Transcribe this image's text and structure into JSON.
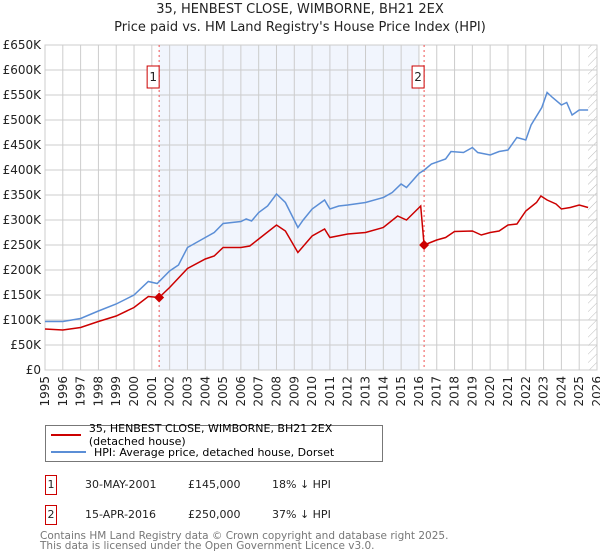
{
  "chart_data": {
    "type": "line",
    "title": "35, HENBEST CLOSE, WIMBORNE, BH21 2EX",
    "subtitle": "Price paid vs. HM Land Registry's House Price Index (HPI)",
    "xlim": [
      1995,
      2026
    ],
    "ylim": [
      0,
      650000
    ],
    "yticks": [
      0,
      50000,
      100000,
      150000,
      200000,
      250000,
      300000,
      350000,
      400000,
      450000,
      500000,
      550000,
      600000,
      650000
    ],
    "ytick_labels": [
      "£0",
      "£50K",
      "£100K",
      "£150K",
      "£200K",
      "£250K",
      "£300K",
      "£350K",
      "£400K",
      "£450K",
      "£500K",
      "£550K",
      "£600K",
      "£650K"
    ],
    "xtick_labels": [
      "1995",
      "1996",
      "1997",
      "1998",
      "1999",
      "2000",
      "2001",
      "2002",
      "2003",
      "2004",
      "2005",
      "2006",
      "2007",
      "2008",
      "2009",
      "2010",
      "2011",
      "2012",
      "2013",
      "2014",
      "2015",
      "2016",
      "2017",
      "2018",
      "2019",
      "2020",
      "2021",
      "2022",
      "2023",
      "2024",
      "2025",
      "2026"
    ],
    "grid": true,
    "series": [
      {
        "name": "35, HENBEST CLOSE, WIMBORNE, BH21 2EX (detached house)",
        "color": "#cc0000",
        "x": [
          1995,
          1996,
          1997,
          1998,
          1999,
          2000,
          2000.8,
          2001.41,
          2002,
          2003,
          2004,
          2004.5,
          2005,
          2006,
          2006.5,
          2007,
          2008,
          2008.5,
          2009.2,
          2010,
          2010.7,
          2011,
          2012,
          2013,
          2014,
          2014.8,
          2015.3,
          2016.1,
          2016.29,
          2017,
          2017.5,
          2018,
          2019,
          2019.5,
          2020,
          2020.5,
          2021,
          2021.5,
          2022,
          2022.6,
          2022.85,
          2023.2,
          2023.7,
          2024,
          2024.5,
          2025,
          2025.5
        ],
        "y": [
          82000,
          80000,
          85000,
          97000,
          108000,
          125000,
          147000,
          145000,
          165000,
          203000,
          222000,
          228000,
          245000,
          245000,
          248000,
          262000,
          290000,
          278000,
          235000,
          268000,
          282000,
          265000,
          272000,
          275000,
          285000,
          308000,
          300000,
          328000,
          250000,
          260000,
          265000,
          277000,
          278000,
          270000,
          275000,
          278000,
          290000,
          292000,
          318000,
          335000,
          348000,
          340000,
          332000,
          322000,
          325000,
          330000,
          325000
        ]
      },
      {
        "name": "HPI: Average price, detached house, Dorset",
        "color": "#5b8ed6",
        "x": [
          1995,
          1996,
          1997,
          1998,
          1999,
          2000,
          2000.8,
          2001.3,
          2002,
          2002.5,
          2003,
          2004,
          2004.5,
          2005,
          2006,
          2006.3,
          2006.6,
          2007,
          2007.5,
          2008,
          2008.5,
          2009.2,
          2009.5,
          2010,
          2010.7,
          2011,
          2011.5,
          2012,
          2013,
          2014,
          2014.5,
          2015,
          2015.3,
          2016,
          2016.3,
          2016.7,
          2017.5,
          2017.8,
          2018.5,
          2019,
          2019.3,
          2020,
          2020.5,
          2021,
          2021.5,
          2022,
          2022.3,
          2022.9,
          2023.2,
          2023.5,
          2024,
          2024.3,
          2024.6,
          2025,
          2025.5
        ],
        "y": [
          97000,
          97000,
          103000,
          118000,
          132000,
          150000,
          177000,
          173000,
          198000,
          210000,
          245000,
          265000,
          275000,
          293000,
          297000,
          302000,
          298000,
          315000,
          328000,
          352000,
          335000,
          285000,
          300000,
          322000,
          340000,
          322000,
          328000,
          330000,
          335000,
          345000,
          355000,
          372000,
          365000,
          393000,
          400000,
          412000,
          422000,
          437000,
          435000,
          445000,
          435000,
          430000,
          437000,
          440000,
          465000,
          460000,
          490000,
          525000,
          555000,
          545000,
          530000,
          535000,
          510000,
          520000,
          520000
        ]
      }
    ],
    "shaded_range": [
      2001.41,
      2016.0
    ],
    "hatched_from": 2025.5,
    "markers": [
      {
        "label": "1",
        "x": 2001.41,
        "y": 145000
      },
      {
        "label": "2",
        "x": 2016.29,
        "y": 250000
      }
    ]
  },
  "transactions": [
    {
      "num": "1",
      "date": "30-MAY-2001",
      "price": "£145,000",
      "hpi": "18% ↓ HPI"
    },
    {
      "num": "2",
      "date": "15-APR-2016",
      "price": "£250,000",
      "hpi": "37% ↓ HPI"
    }
  ],
  "footer": {
    "line1": "Contains HM Land Registry data © Crown copyright and database right 2025.",
    "line2": "This data is licensed under the Open Government Licence v3.0."
  }
}
